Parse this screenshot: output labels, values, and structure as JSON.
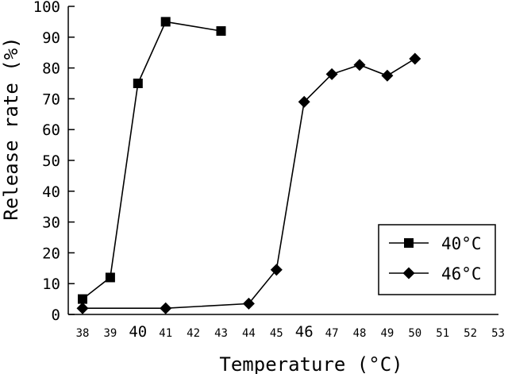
{
  "chart_data": {
    "type": "line",
    "xlabel": "Temperature (°C)",
    "ylabel": "Release rate (%)",
    "xlim": [
      38,
      53
    ],
    "ylim": [
      0,
      100
    ],
    "x_ticks": [
      38,
      39,
      40,
      41,
      42,
      43,
      44,
      45,
      46,
      47,
      48,
      49,
      50,
      51,
      52,
      53
    ],
    "x_tick_labels": [
      "38",
      "39",
      "40",
      "41",
      "42",
      "43",
      "44",
      "45",
      "46",
      "47",
      "48",
      "49",
      "50",
      "51",
      "52",
      "53"
    ],
    "x_tick_emphasis": [
      40,
      46
    ],
    "y_ticks": [
      0,
      10,
      20,
      30,
      40,
      50,
      60,
      70,
      80,
      90,
      100
    ],
    "y_tick_labels": [
      "0",
      "10",
      "20",
      "30",
      "40",
      "50",
      "60",
      "70",
      "80",
      "90",
      "100"
    ],
    "grid": false,
    "legend_position": "bottom-right",
    "series": [
      {
        "name": "40°C",
        "marker": "square",
        "color": "#000000",
        "points": [
          [
            38,
            5
          ],
          [
            39,
            12
          ],
          [
            40,
            75
          ],
          [
            41,
            95
          ],
          [
            43,
            92
          ]
        ]
      },
      {
        "name": "46°C",
        "marker": "diamond",
        "color": "#000000",
        "points": [
          [
            38,
            2
          ],
          [
            41,
            2
          ],
          [
            44,
            3.5
          ],
          [
            45,
            14.5
          ],
          [
            46,
            69
          ],
          [
            47,
            78
          ],
          [
            48,
            81
          ],
          [
            49,
            77.5
          ],
          [
            50,
            83
          ]
        ]
      }
    ]
  }
}
